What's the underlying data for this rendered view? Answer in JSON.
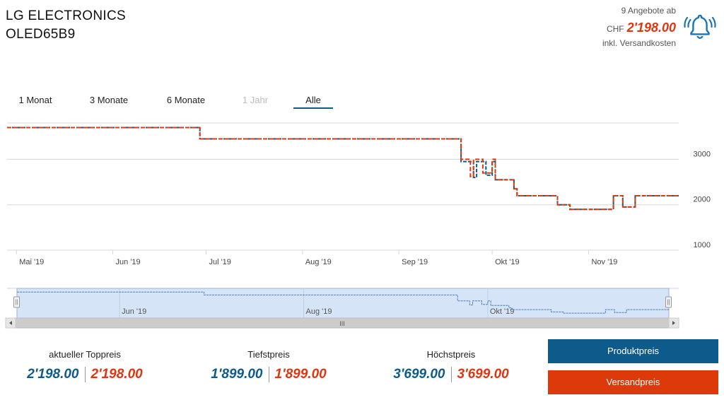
{
  "product": {
    "brand": "LG ELECTRONICS",
    "model": "OLED65B9"
  },
  "offer": {
    "count_text": "9 Angebote ab",
    "currency": "CHF",
    "price": "2'198.00",
    "shipping_note": "inkl. Versandkosten",
    "icon": "bell-alert-icon"
  },
  "ranges": [
    {
      "label": "1 Monat",
      "state": "enabled"
    },
    {
      "label": "3 Monate",
      "state": "enabled"
    },
    {
      "label": "6 Monate",
      "state": "enabled"
    },
    {
      "label": "1 Jahr",
      "state": "disabled"
    },
    {
      "label": "Alle",
      "state": "active"
    }
  ],
  "chart_data": {
    "type": "line",
    "title": "",
    "xlabel": "",
    "ylabel": "",
    "x_axis": "date",
    "xlim": [
      "2019-04-28",
      "2019-11-30"
    ],
    "ylim": [
      1000,
      3800
    ],
    "yticks": [
      1000,
      2000,
      3000
    ],
    "xticks": [
      {
        "date": "2019-05-01",
        "label": "Mai '19"
      },
      {
        "date": "2019-06-01",
        "label": "Jun '19"
      },
      {
        "date": "2019-07-01",
        "label": "Jul '19"
      },
      {
        "date": "2019-08-01",
        "label": "Aug '19"
      },
      {
        "date": "2019-09-01",
        "label": "Sep '19"
      },
      {
        "date": "2019-10-01",
        "label": "Okt '19"
      },
      {
        "date": "2019-11-01",
        "label": "Nov '19"
      }
    ],
    "navigator_ticks": [
      {
        "date": "2019-06-01",
        "label": "Jun '19"
      },
      {
        "date": "2019-08-01",
        "label": "Aug '19"
      },
      {
        "date": "2019-10-01",
        "label": "Okt '19"
      }
    ],
    "grid": true,
    "step": true,
    "series": [
      {
        "name": "Produktpreis",
        "color": "#0e5a8a",
        "points": [
          [
            "2019-04-28",
            3699
          ],
          [
            "2019-06-29",
            3699
          ],
          [
            "2019-06-29",
            3450
          ],
          [
            "2019-09-21",
            3450
          ],
          [
            "2019-09-21",
            2950
          ],
          [
            "2019-09-25",
            2950
          ],
          [
            "2019-09-25",
            2600
          ],
          [
            "2019-09-26",
            2600
          ],
          [
            "2019-09-26",
            2950
          ],
          [
            "2019-09-29",
            2950
          ],
          [
            "2019-09-29",
            2650
          ],
          [
            "2019-10-01",
            2650
          ],
          [
            "2019-10-01",
            2950
          ],
          [
            "2019-10-02",
            2950
          ],
          [
            "2019-10-02",
            2550
          ],
          [
            "2019-10-08",
            2550
          ],
          [
            "2019-10-08",
            2350
          ],
          [
            "2019-10-09",
            2350
          ],
          [
            "2019-10-09",
            2198
          ],
          [
            "2019-10-22",
            2198
          ],
          [
            "2019-10-22",
            2000
          ],
          [
            "2019-10-26",
            2000
          ],
          [
            "2019-10-26",
            1899
          ],
          [
            "2019-11-09",
            1899
          ],
          [
            "2019-11-09",
            2198
          ],
          [
            "2019-11-12",
            2198
          ],
          [
            "2019-11-12",
            1950
          ],
          [
            "2019-11-16",
            1950
          ],
          [
            "2019-11-16",
            2198
          ],
          [
            "2019-11-30",
            2198
          ]
        ]
      },
      {
        "name": "Versandpreis",
        "color": "#dd3a0c",
        "points": [
          [
            "2019-04-28",
            3699
          ],
          [
            "2019-06-29",
            3699
          ],
          [
            "2019-06-29",
            3450
          ],
          [
            "2019-09-21",
            3450
          ],
          [
            "2019-09-21",
            3000
          ],
          [
            "2019-09-24",
            3000
          ],
          [
            "2019-09-24",
            2620
          ],
          [
            "2019-09-25",
            2620
          ],
          [
            "2019-09-25",
            3000
          ],
          [
            "2019-09-28",
            3000
          ],
          [
            "2019-09-28",
            2700
          ],
          [
            "2019-10-01",
            2700
          ],
          [
            "2019-10-01",
            3000
          ],
          [
            "2019-10-02",
            3000
          ],
          [
            "2019-10-02",
            2550
          ],
          [
            "2019-10-08",
            2550
          ],
          [
            "2019-10-08",
            2350
          ],
          [
            "2019-10-09",
            2350
          ],
          [
            "2019-10-09",
            2198
          ],
          [
            "2019-10-22",
            2198
          ],
          [
            "2019-10-22",
            2000
          ],
          [
            "2019-10-26",
            2000
          ],
          [
            "2019-10-26",
            1899
          ],
          [
            "2019-11-09",
            1899
          ],
          [
            "2019-11-09",
            2198
          ],
          [
            "2019-11-12",
            2198
          ],
          [
            "2019-11-12",
            1950
          ],
          [
            "2019-11-16",
            1950
          ],
          [
            "2019-11-16",
            2198
          ],
          [
            "2019-11-30",
            2198
          ]
        ]
      }
    ]
  },
  "stats": [
    {
      "label": "aktueller Toppreis",
      "product": "2'198.00",
      "shipping": "2'198.00"
    },
    {
      "label": "Tiefstpreis",
      "product": "1'899.00",
      "shipping": "1'899.00"
    },
    {
      "label": "Höchstpreis",
      "product": "3'699.00",
      "shipping": "3'699.00"
    }
  ],
  "buttons": {
    "product": "Produktpreis",
    "shipping": "Versandpreis"
  },
  "navigator": {
    "scroll_grip": "III"
  }
}
